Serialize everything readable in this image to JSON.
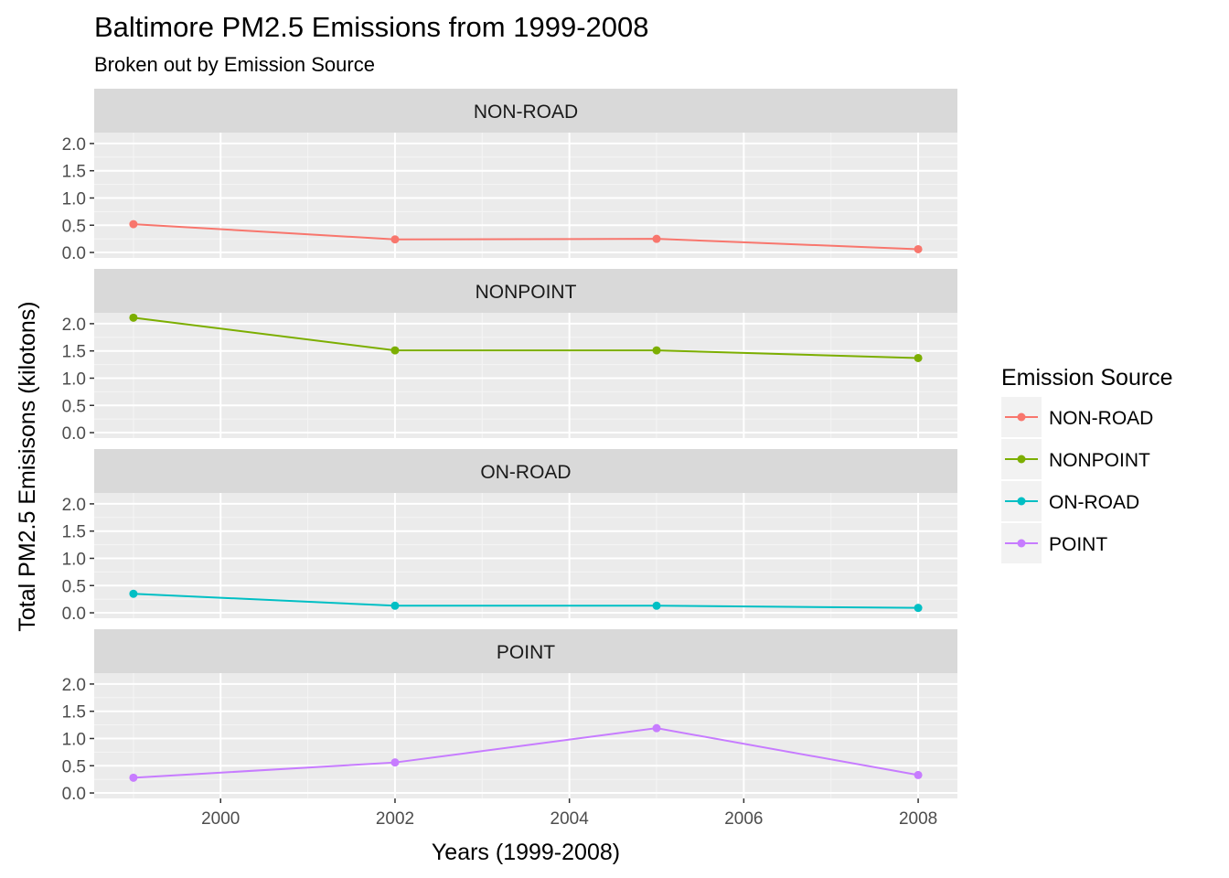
{
  "chart_data": {
    "type": "line",
    "title": "Baltimore PM2.5 Emissions from 1999-2008",
    "subtitle": "Broken out by Emission Source",
    "xlabel": "Years (1999-2008)",
    "ylabel": "Total PM2.5 Emisisons (kilotons)",
    "x": [
      1999,
      2002,
      2005,
      2008
    ],
    "xticks": [
      2000,
      2002,
      2004,
      2006,
      2008
    ],
    "xtick_labels": [
      "2000",
      "2002",
      "2004",
      "2006",
      "2008"
    ],
    "yticks": [
      0.0,
      0.5,
      1.0,
      1.5,
      2.0
    ],
    "ytick_labels": [
      "0.0",
      "0.5",
      "1.0",
      "1.5",
      "2.0"
    ],
    "xlim": [
      1998.55,
      2008.45
    ],
    "ylim": [
      -0.1,
      2.2
    ],
    "grid": true,
    "legend": {
      "title": "Emission Source",
      "placement": "right"
    },
    "series": [
      {
        "name": "NON-ROAD",
        "color": "#F8766D",
        "values": [
          0.52,
          0.24,
          0.25,
          0.06
        ]
      },
      {
        "name": "NONPOINT",
        "color": "#7CAE00",
        "values": [
          2.11,
          1.51,
          1.51,
          1.37
        ]
      },
      {
        "name": "ON-ROAD",
        "color": "#00BFC4",
        "values": [
          0.35,
          0.13,
          0.13,
          0.09
        ]
      },
      {
        "name": "POINT",
        "color": "#C77CFF",
        "values": [
          0.28,
          0.56,
          1.19,
          0.33
        ]
      }
    ]
  }
}
